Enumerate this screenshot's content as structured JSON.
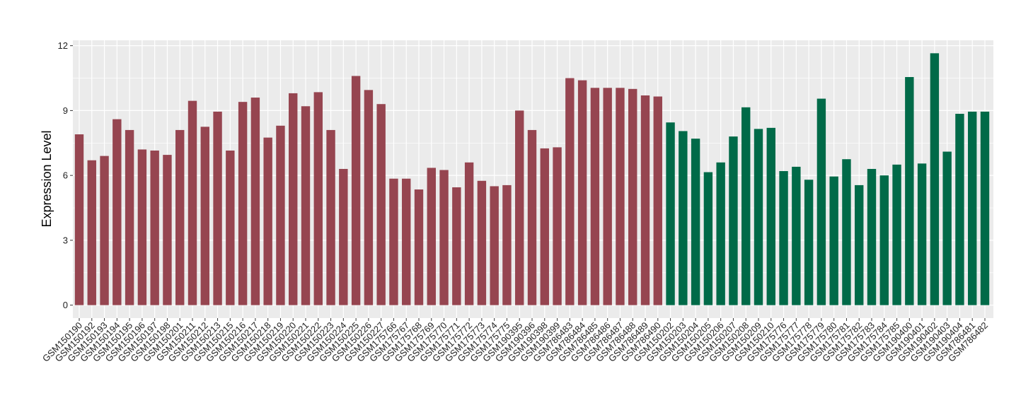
{
  "chart_data": {
    "type": "bar",
    "title": "",
    "xlabel": "",
    "ylabel": "Expression Level",
    "ylim": [
      -0.6,
      12.25
    ],
    "yticks": [
      0,
      3,
      6,
      9,
      12
    ],
    "grid": true,
    "legend": "none",
    "colors": {
      "group1": "#964550",
      "group2": "#006a48",
      "panel": "#ebebeb",
      "grid": "#ffffff"
    },
    "categories": [
      "GSM150190",
      "GSM150192",
      "GSM150193",
      "GSM150194",
      "GSM150195",
      "GSM150196",
      "GSM150197",
      "GSM150198",
      "GSM150201",
      "GSM150211",
      "GSM150212",
      "GSM150213",
      "GSM150215",
      "GSM150216",
      "GSM150217",
      "GSM150218",
      "GSM150219",
      "GSM150220",
      "GSM150221",
      "GSM150222",
      "GSM150223",
      "GSM150224",
      "GSM150225",
      "GSM150226",
      "GSM150227",
      "GSM175766",
      "GSM175767",
      "GSM175768",
      "GSM175769",
      "GSM175770",
      "GSM175771",
      "GSM175772",
      "GSM175773",
      "GSM175774",
      "GSM175775",
      "GSM190395",
      "GSM190396",
      "GSM190398",
      "GSM190399",
      "GSM786483",
      "GSM786484",
      "GSM786485",
      "GSM786486",
      "GSM786487",
      "GSM786488",
      "GSM786489",
      "GSM786490",
      "GSM150202",
      "GSM150203",
      "GSM150204",
      "GSM150205",
      "GSM150206",
      "GSM150207",
      "GSM150208",
      "GSM150209",
      "GSM150210",
      "GSM175776",
      "GSM175777",
      "GSM175778",
      "GSM175779",
      "GSM175780",
      "GSM175781",
      "GSM175782",
      "GSM175783",
      "GSM175784",
      "GSM175785",
      "GSM190400",
      "GSM190401",
      "GSM190402",
      "GSM190403",
      "GSM190404",
      "GSM786481",
      "GSM786482"
    ],
    "values": [
      7.9,
      6.7,
      6.9,
      8.6,
      8.1,
      7.2,
      7.15,
      6.95,
      8.1,
      9.45,
      8.25,
      8.95,
      7.15,
      9.4,
      9.6,
      7.75,
      8.3,
      9.8,
      9.2,
      9.85,
      8.1,
      6.3,
      10.6,
      9.95,
      9.3,
      5.85,
      5.85,
      5.35,
      6.35,
      6.25,
      5.45,
      6.6,
      5.75,
      5.5,
      5.55,
      9.0,
      8.1,
      7.25,
      7.3,
      10.5,
      10.4,
      10.05,
      10.05,
      10.05,
      10.0,
      9.7,
      9.65,
      8.45,
      8.05,
      7.7,
      6.15,
      6.6,
      7.8,
      9.15,
      8.15,
      8.2,
      6.2,
      6.4,
      5.8,
      9.55,
      5.95,
      6.75,
      5.55,
      6.3,
      6.0,
      6.5,
      10.55,
      6.55,
      11.65,
      7.1,
      8.85,
      8.95,
      8.95
    ],
    "group_split": 47
  }
}
